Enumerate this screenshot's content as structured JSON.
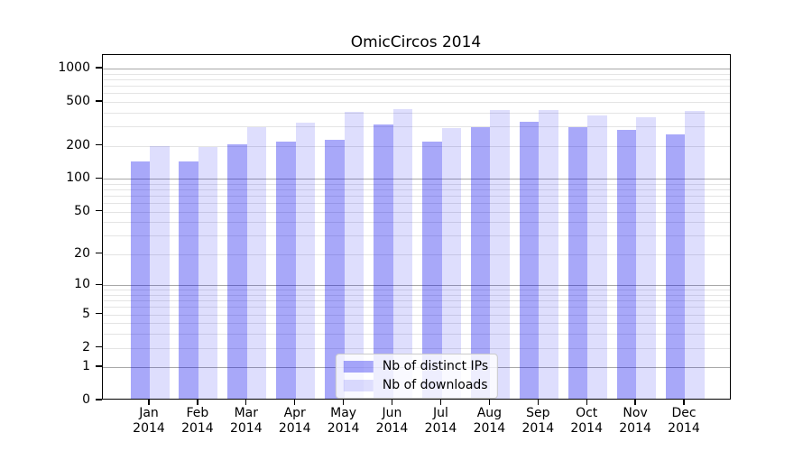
{
  "chart_data": {
    "type": "bar",
    "title": "OmicCircos 2014",
    "categories": [
      "Jan",
      "Feb",
      "Mar",
      "Apr",
      "May",
      "Jun",
      "Jul",
      "Aug",
      "Sep",
      "Oct",
      "Nov",
      "Dec"
    ],
    "category_year": "2014",
    "series": [
      {
        "name": "Nb of distinct IPs",
        "color": "#a9a9f8",
        "values": [
          139,
          139,
          200,
          210,
          218,
          298,
          208,
          285,
          315,
          285,
          268,
          244
        ]
      },
      {
        "name": "Nb of downloads",
        "color": "#dcdcfb",
        "values": [
          190,
          187,
          285,
          310,
          388,
          413,
          277,
          403,
          408,
          362,
          350,
          396
        ]
      }
    ],
    "yscale": "log10(value+1)",
    "yticks": [
      1000,
      500,
      200,
      100,
      50,
      20,
      10,
      5,
      2,
      1,
      0
    ],
    "major_gridlines": [
      1,
      10,
      100,
      1000
    ],
    "ylim": [
      0,
      1326
    ],
    "grid": true,
    "legend_position": "lower center",
    "colors": {
      "bar_distinct_ips": "#a9a9f8",
      "bar_downloads": "#dcdcfb",
      "major_grid": "#a8a8a8",
      "minor_grid": "#e4e4e4",
      "frame": "#000000",
      "background": "#ffffff"
    }
  }
}
